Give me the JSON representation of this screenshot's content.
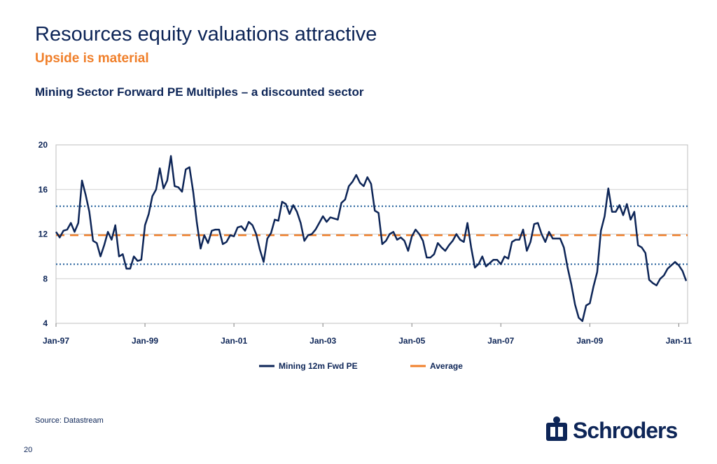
{
  "title": "Resources equity valuations attractive",
  "subtitle": "Upside is material",
  "source": "Source: Datastream",
  "page_number": "20",
  "logo": "Schroders",
  "chart_data": {
    "type": "line",
    "title": "Mining Sector Forward PE Multiples – a discounted sector",
    "x": [
      "1997-01",
      "1997-02",
      "1997-03",
      "1997-04",
      "1997-05",
      "1997-06",
      "1997-07",
      "1997-08",
      "1997-09",
      "1997-10",
      "1997-11",
      "1997-12",
      "1998-01",
      "1998-02",
      "1998-03",
      "1998-04",
      "1998-05",
      "1998-06",
      "1998-07",
      "1998-08",
      "1998-09",
      "1998-10",
      "1998-11",
      "1998-12",
      "1999-01",
      "1999-02",
      "1999-03",
      "1999-04",
      "1999-05",
      "1999-06",
      "1999-07",
      "1999-08",
      "1999-09",
      "1999-10",
      "1999-11",
      "1999-12",
      "2000-01",
      "2000-02",
      "2000-03",
      "2000-04",
      "2000-05",
      "2000-06",
      "2000-07",
      "2000-08",
      "2000-09",
      "2000-10",
      "2000-11",
      "2000-12",
      "2001-01",
      "2001-02",
      "2001-03",
      "2001-04",
      "2001-05",
      "2001-06",
      "2001-07",
      "2001-08",
      "2001-09",
      "2001-10",
      "2001-11",
      "2001-12",
      "2002-01",
      "2002-02",
      "2002-03",
      "2002-04",
      "2002-05",
      "2002-06",
      "2002-07",
      "2002-08",
      "2002-09",
      "2002-10",
      "2002-11",
      "2002-12",
      "2003-01",
      "2003-02",
      "2003-03",
      "2003-04",
      "2003-05",
      "2003-06",
      "2003-07",
      "2003-08",
      "2003-09",
      "2003-10",
      "2003-11",
      "2003-12",
      "2004-01",
      "2004-02",
      "2004-03",
      "2004-04",
      "2004-05",
      "2004-06",
      "2004-07",
      "2004-08",
      "2004-09",
      "2004-10",
      "2004-11",
      "2004-12",
      "2005-01",
      "2005-02",
      "2005-03",
      "2005-04",
      "2005-05",
      "2005-06",
      "2005-07",
      "2005-08",
      "2005-09",
      "2005-10",
      "2005-11",
      "2005-12",
      "2006-01",
      "2006-02",
      "2006-03",
      "2006-04",
      "2006-05",
      "2006-06",
      "2006-07",
      "2006-08",
      "2006-09",
      "2006-10",
      "2006-11",
      "2006-12",
      "2007-01",
      "2007-02",
      "2007-03",
      "2007-04",
      "2007-05",
      "2007-06",
      "2007-07",
      "2007-08",
      "2007-09",
      "2007-10",
      "2007-11",
      "2007-12",
      "2008-01",
      "2008-02",
      "2008-03",
      "2008-04",
      "2008-05",
      "2008-06",
      "2008-07",
      "2008-08",
      "2008-09",
      "2008-10",
      "2008-11",
      "2008-12",
      "2009-01",
      "2009-02",
      "2009-03",
      "2009-04",
      "2009-05",
      "2009-06",
      "2009-07",
      "2009-08",
      "2009-09",
      "2009-10",
      "2009-11",
      "2009-12",
      "2010-01",
      "2010-02",
      "2010-03",
      "2010-04",
      "2010-05",
      "2010-06",
      "2010-07",
      "2010-08",
      "2010-09",
      "2010-10",
      "2010-11",
      "2010-12",
      "2011-01",
      "2011-02",
      "2011-03"
    ],
    "series": [
      {
        "name": "Mining 12m Fwd PE",
        "color": "#0d2557",
        "values": [
          12.2,
          11.7,
          12.3,
          12.4,
          13.0,
          12.2,
          13.0,
          16.8,
          15.5,
          14.0,
          11.4,
          11.2,
          10.0,
          11.0,
          12.2,
          11.5,
          12.8,
          10.0,
          10.2,
          8.9,
          8.9,
          10.0,
          9.6,
          9.7,
          12.8,
          13.8,
          15.4,
          16.0,
          17.9,
          16.1,
          16.8,
          19.0,
          16.3,
          16.2,
          15.8,
          17.8,
          18.0,
          15.8,
          13.0,
          10.7,
          11.9,
          11.2,
          12.3,
          12.4,
          12.4,
          11.1,
          11.3,
          11.9,
          11.8,
          12.6,
          12.7,
          12.3,
          13.1,
          12.8,
          12.0,
          10.6,
          9.5,
          11.6,
          12.1,
          13.3,
          13.2,
          14.9,
          14.7,
          13.8,
          14.6,
          14.0,
          13.0,
          11.4,
          11.9,
          12.0,
          12.4,
          13.0,
          13.6,
          13.1,
          13.5,
          13.4,
          13.3,
          14.8,
          15.1,
          16.3,
          16.7,
          17.3,
          16.6,
          16.3,
          17.1,
          16.5,
          14.1,
          13.9,
          11.1,
          11.4,
          12.0,
          12.2,
          11.5,
          11.7,
          11.4,
          10.5,
          11.8,
          12.4,
          12.0,
          11.4,
          9.9,
          9.9,
          10.2,
          11.2,
          10.8,
          10.5,
          11.0,
          11.4,
          12.0,
          11.5,
          11.3,
          13.0,
          10.8,
          9.0,
          9.3,
          10.0,
          9.1,
          9.4,
          9.7,
          9.7,
          9.3,
          10.0,
          9.8,
          11.3,
          11.5,
          11.5,
          12.4,
          10.5,
          11.3,
          12.9,
          13.0,
          12.0,
          11.3,
          12.2,
          11.6,
          11.6,
          11.6,
          10.8,
          9.0,
          7.5,
          5.7,
          4.5,
          4.2,
          5.6,
          5.8,
          7.3,
          8.6,
          12.3,
          13.6,
          16.1,
          14.0,
          14.0,
          14.6,
          13.7,
          14.7,
          13.3,
          14.0,
          11.0,
          10.8,
          10.3,
          7.9,
          7.6,
          7.4,
          8.0,
          8.3,
          8.9,
          9.2,
          9.5,
          9.2,
          8.7,
          7.8
        ]
      }
    ],
    "average": {
      "name": "Average",
      "value": 11.9,
      "color": "#f07f2a"
    },
    "bands": {
      "values": [
        14.5,
        9.3
      ],
      "color": "#1f5c99"
    },
    "xlim": [
      "1997-01",
      "2011-03"
    ],
    "xticks": [
      {
        "value": "1997-01",
        "label": "Jan-97"
      },
      {
        "value": "1999-01",
        "label": "Jan-99"
      },
      {
        "value": "2001-01",
        "label": "Jan-01"
      },
      {
        "value": "2003-01",
        "label": "Jan-03"
      },
      {
        "value": "2005-01",
        "label": "Jan-05"
      },
      {
        "value": "2007-01",
        "label": "Jan-07"
      },
      {
        "value": "2009-01",
        "label": "Jan-09"
      },
      {
        "value": "2011-01",
        "label": "Jan-11"
      }
    ],
    "ylim": [
      4,
      20
    ],
    "yticks": [
      4,
      8,
      12,
      16,
      20
    ],
    "grid": true,
    "legend": "bottom"
  }
}
